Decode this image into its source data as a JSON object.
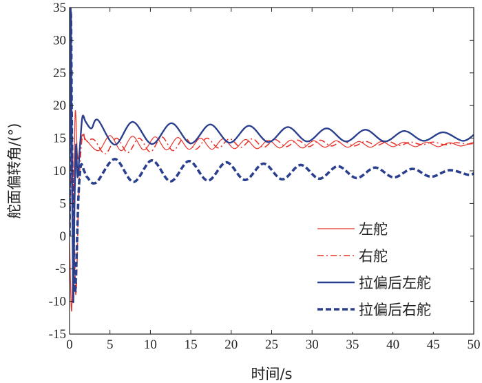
{
  "chart_data": {
    "type": "line",
    "title": "",
    "xlabel": "时间/s",
    "ylabel": "舵面偏转角/(°)",
    "xlim": [
      0,
      50
    ],
    "ylim": [
      -15,
      35
    ],
    "xticks": [
      0,
      5,
      10,
      15,
      20,
      25,
      30,
      35,
      40,
      45,
      50
    ],
    "yticks": [
      -15,
      -10,
      -5,
      0,
      5,
      10,
      15,
      20,
      25,
      30,
      35
    ],
    "grid": false,
    "legend_position": "bottom-right",
    "series": [
      {
        "name": "左舵",
        "color": "#e8322a",
        "style": "solid-thin",
        "x": [
          0,
          0.25,
          0.5,
          0.7,
          1.0,
          1.3,
          1.6,
          1.9,
          2.2,
          3.6,
          5.0,
          6.4,
          7.8,
          9.2,
          10.6,
          12.0,
          13.4,
          14.8,
          16.2,
          17.6,
          19.0,
          20.4,
          21.8,
          23.2,
          24.6,
          26.0,
          27.4,
          28.8,
          30.2,
          31.6,
          33.0,
          34.4,
          35.8,
          37.2,
          38.6,
          40.0,
          41.4,
          42.8,
          44.2,
          45.6,
          47.0,
          48.4,
          49.8,
          50
        ],
        "y": [
          0,
          -11.5,
          2,
          19,
          12,
          14,
          15.5,
          15,
          14.5,
          13.1,
          15.4,
          13.1,
          15.3,
          13.2,
          15.2,
          13.2,
          15.1,
          13.3,
          15.0,
          13.3,
          14.9,
          13.4,
          14.8,
          13.4,
          14.7,
          13.5,
          14.7,
          13.5,
          14.6,
          13.6,
          14.6,
          13.6,
          14.5,
          13.6,
          14.5,
          13.7,
          14.4,
          13.7,
          14.4,
          13.7,
          14.3,
          13.8,
          14.3,
          14.2
        ]
      },
      {
        "name": "右舵",
        "color": "#e8322a",
        "style": "dash-dot",
        "x": [
          0,
          0.3,
          0.55,
          0.8,
          1.1,
          1.4,
          1.7,
          2.0,
          3.0,
          4.4,
          5.8,
          7.2,
          8.6,
          10.0,
          11.4,
          12.8,
          14.2,
          15.6,
          17.0,
          18.4,
          19.8,
          21.2,
          22.6,
          24.0,
          25.4,
          26.8,
          28.2,
          29.6,
          31.0,
          32.4,
          33.8,
          35.2,
          36.6,
          38.0,
          39.4,
          40.8,
          42.2,
          43.6,
          45.0,
          46.4,
          47.8,
          49.2,
          50
        ],
        "y": [
          0,
          14,
          2,
          -9,
          5,
          13,
          15.8,
          14.5,
          14.8,
          12.6,
          15.0,
          12.8,
          15.0,
          12.9,
          15.2,
          13.1,
          15.1,
          13.3,
          15.0,
          13.5,
          14.9,
          13.6,
          14.9,
          13.6,
          14.8,
          13.7,
          14.7,
          13.7,
          14.7,
          13.8,
          14.6,
          13.8,
          14.5,
          13.9,
          14.5,
          13.9,
          14.4,
          14.0,
          14.4,
          14.0,
          14.3,
          14.1,
          14.2
        ]
      },
      {
        "name": "拉偏后左舵",
        "color": "#2b3f8f",
        "style": "solid-thick",
        "x": [
          0,
          0.12,
          0.28,
          0.45,
          0.62,
          0.8,
          1.0,
          1.3,
          1.6,
          2.0,
          2.7,
          3.5,
          5.6,
          7.8,
          10.2,
          12.6,
          15.0,
          17.4,
          19.8,
          22.2,
          24.6,
          27.0,
          29.4,
          31.8,
          34.2,
          36.6,
          39.0,
          41.4,
          43.8,
          46.2,
          48.6,
          50
        ],
        "y": [
          0,
          35,
          15,
          -10,
          5,
          14,
          9,
          14,
          18.3,
          17.5,
          16.5,
          17.8,
          14.0,
          17.5,
          14.1,
          17.3,
          14.2,
          17.1,
          14.3,
          16.9,
          14.4,
          16.7,
          14.5,
          16.5,
          14.5,
          16.3,
          14.5,
          16.1,
          14.6,
          15.9,
          14.6,
          15.5
        ]
      },
      {
        "name": "拉偏后右舵",
        "color": "#2b3f8f",
        "style": "dash-thick",
        "x": [
          0,
          0.15,
          0.3,
          0.45,
          0.65,
          0.85,
          1.1,
          1.4,
          1.8,
          2.2,
          3.3,
          5.6,
          7.9,
          10.2,
          12.5,
          14.8,
          17.1,
          19.4,
          21.7,
          24.0,
          26.3,
          28.6,
          30.9,
          33.2,
          35.5,
          37.8,
          40.1,
          42.4,
          44.7,
          47.0,
          49.3,
          50
        ],
        "y": [
          0,
          34,
          14,
          1,
          -8.5,
          -4,
          6,
          10.8,
          10.0,
          9.0,
          8.2,
          11.8,
          8.3,
          11.6,
          8.4,
          11.5,
          8.5,
          11.3,
          8.6,
          11.1,
          8.7,
          10.9,
          8.8,
          10.7,
          8.9,
          10.5,
          9.0,
          10.3,
          9.1,
          10.1,
          9.4,
          9.6
        ]
      }
    ]
  }
}
